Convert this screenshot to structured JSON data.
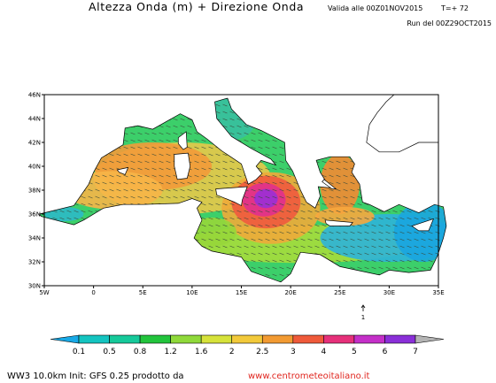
{
  "header": {
    "title": "Altezza Onda (m) + Direzione Onda",
    "valid": "Valida alle 00Z01NOV2015",
    "step": "T=+ 72",
    "run": "Run del 00Z29OCT2015"
  },
  "map": {
    "lat_labels": [
      "30N",
      "32N",
      "34N",
      "36N",
      "38N",
      "40N",
      "42N",
      "44N",
      "46N"
    ],
    "lon_labels": [
      "5W",
      "0",
      "5E",
      "10E",
      "15E",
      "20E",
      "25E",
      "30E",
      "35E"
    ],
    "arrow_scale": "1"
  },
  "legend": {
    "labels": [
      "0.1",
      "0.5",
      "0.8",
      "1.2",
      "1.6",
      "2",
      "2.5",
      "3",
      "4",
      "5",
      "6",
      "7"
    ]
  },
  "footer": {
    "credit": "WW3 10.0km Init: GFS 0.25 prodotto da",
    "website": "www.centrometeoitaliano.it"
  }
}
